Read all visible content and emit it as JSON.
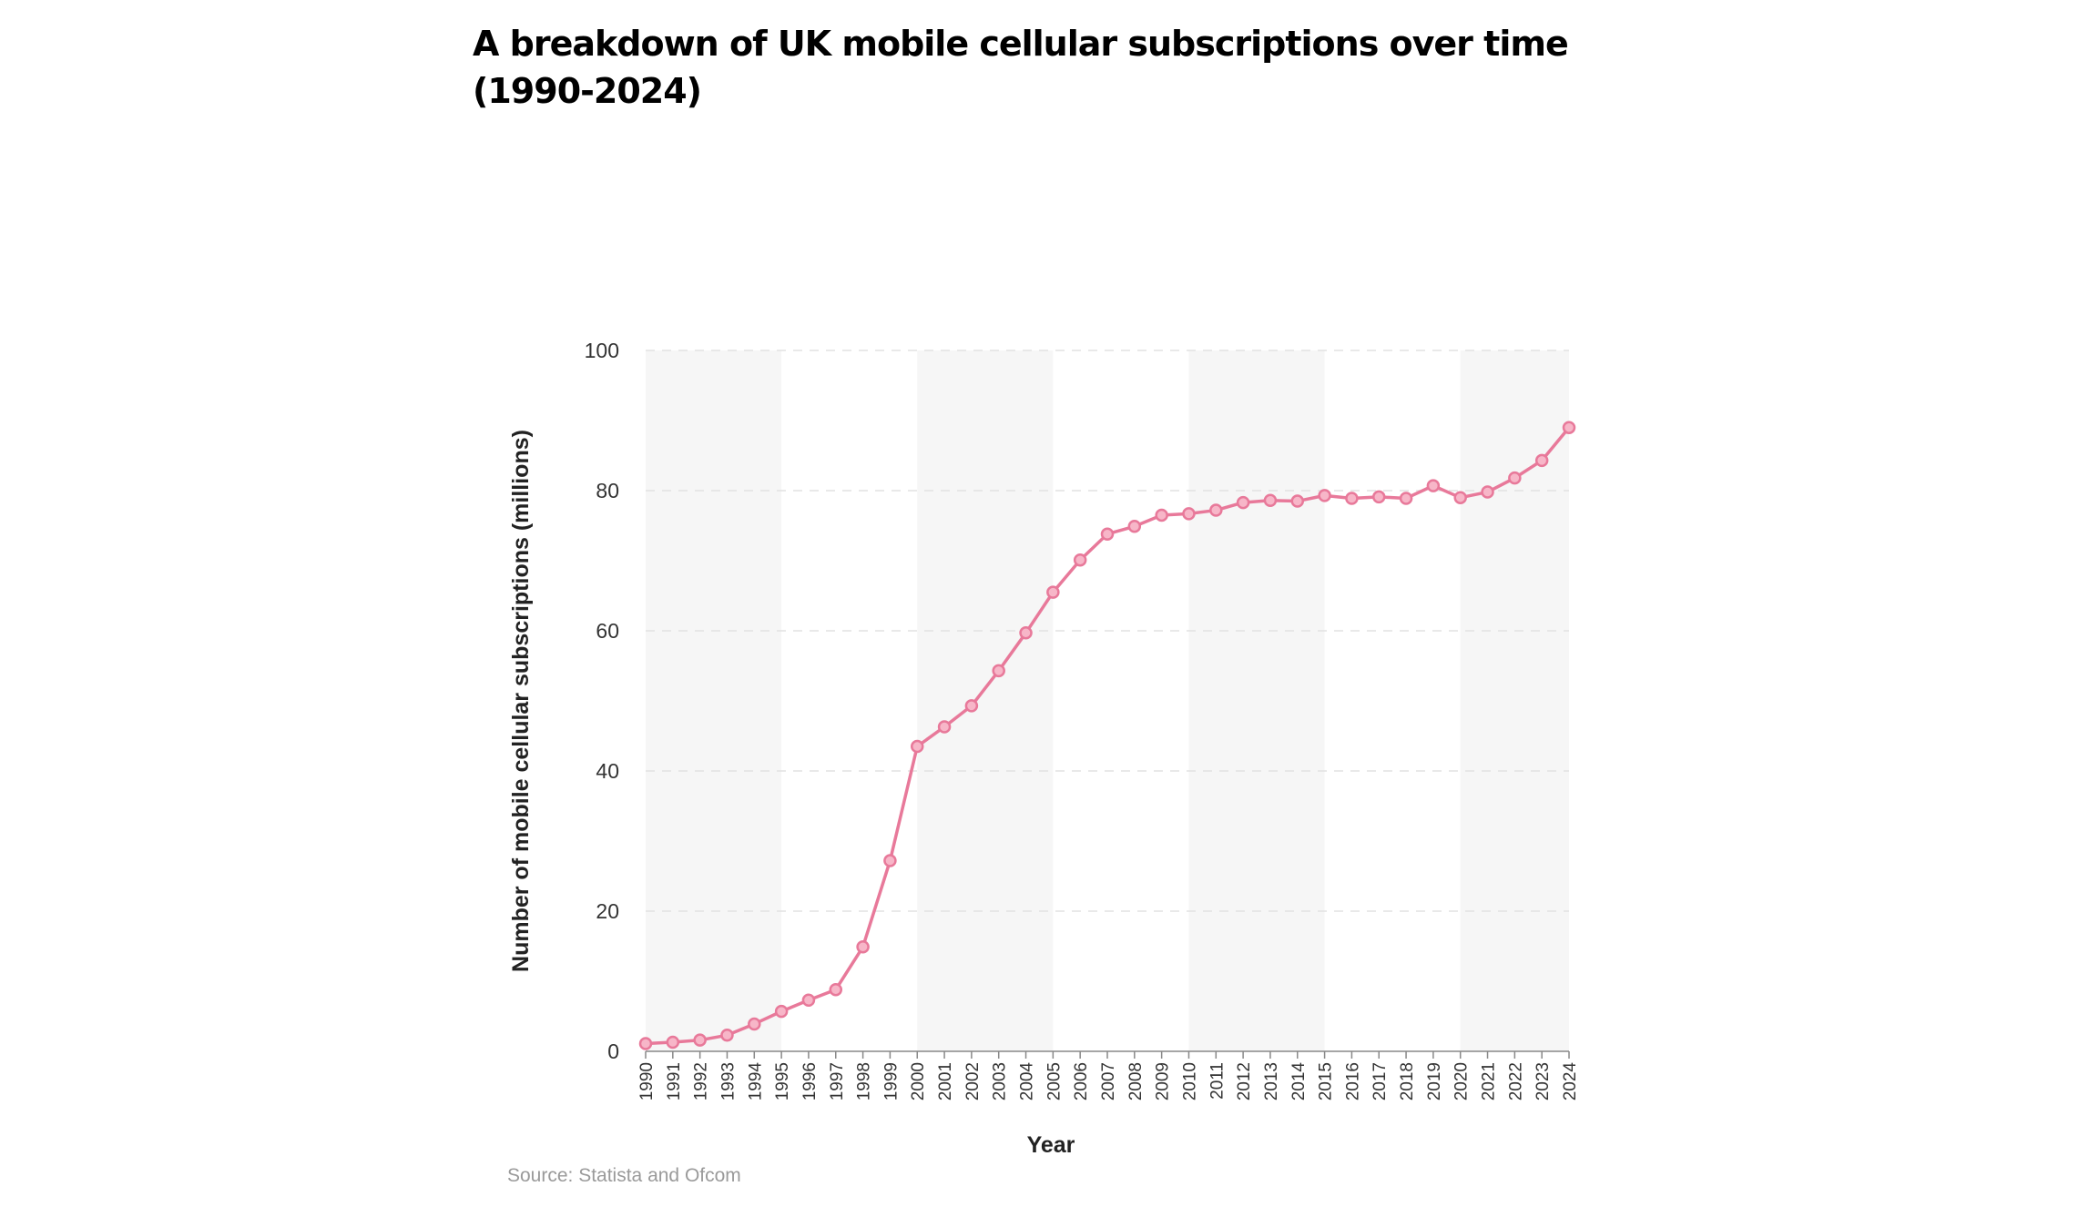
{
  "title": "A breakdown of UK mobile cellular subscriptions over time (1990-2024)",
  "source": "Source: Statista and Ofcom",
  "colors": {
    "line": "#e8799a",
    "point_fill": "#f7b6c8",
    "band": "#f6f6f6",
    "grid": "#e2e2e2"
  },
  "chart_data": {
    "type": "line",
    "title": "A breakdown of UK mobile cellular subscriptions over time (1990-2024)",
    "xlabel": "Year",
    "ylabel": "Number of mobile cellular subscriptions (millions)",
    "ylim": [
      0,
      100
    ],
    "yticks": [
      0,
      20,
      40,
      60,
      80,
      100
    ],
    "grid": true,
    "x": [
      "1990",
      "1991",
      "1992",
      "1993",
      "1994",
      "1995",
      "1996",
      "1997",
      "1998",
      "1999",
      "2000",
      "2001",
      "2002",
      "2003",
      "2004",
      "2005",
      "2006",
      "2007",
      "2008",
      "2009",
      "2010",
      "2011",
      "2012",
      "2013",
      "2014",
      "2015",
      "2016",
      "2017",
      "2018",
      "2019",
      "2020",
      "2021",
      "2022",
      "2023",
      "2024"
    ],
    "series": [
      {
        "name": "Mobile cellular subscriptions (millions)",
        "values": [
          1.1,
          1.3,
          1.6,
          2.3,
          3.9,
          5.7,
          7.3,
          8.8,
          14.9,
          27.2,
          43.5,
          46.3,
          49.3,
          54.3,
          59.7,
          65.5,
          70.1,
          73.8,
          74.9,
          76.5,
          76.7,
          77.2,
          78.3,
          78.6,
          78.5,
          79.3,
          78.9,
          79.1,
          78.9,
          80.7,
          79.0,
          79.8,
          81.8,
          84.3,
          89.0
        ]
      }
    ],
    "shaded_bands": [
      [
        "1990",
        "1995"
      ],
      [
        "2000",
        "2005"
      ],
      [
        "2010",
        "2015"
      ],
      [
        "2020",
        "2024"
      ]
    ]
  }
}
